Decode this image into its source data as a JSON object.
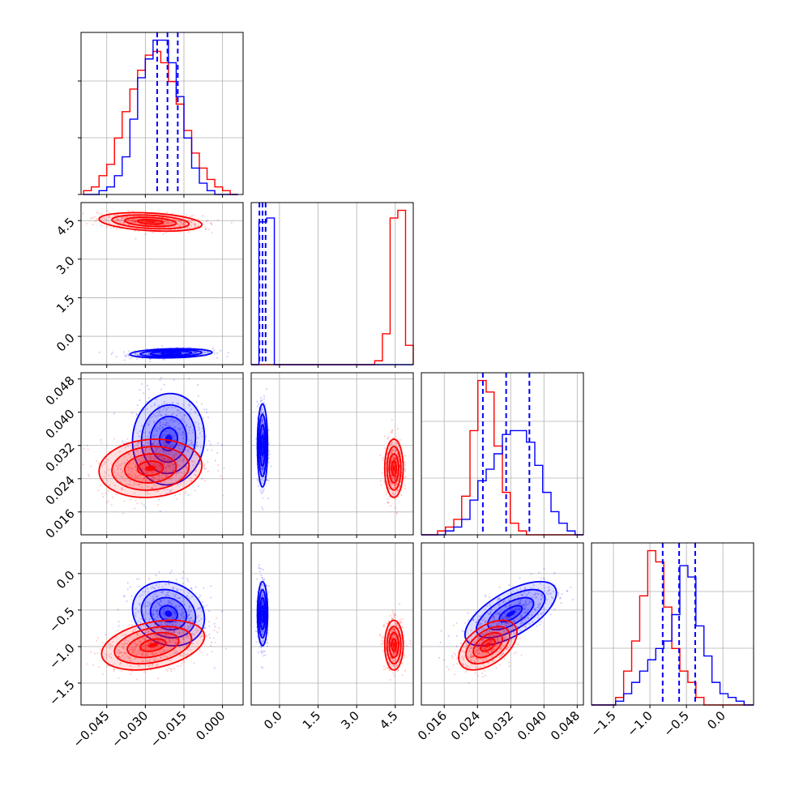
{
  "chart_data": {
    "type": "corner",
    "parameters": 4,
    "series": [
      {
        "color": "#ff0000"
      },
      {
        "color": "#0000ff"
      }
    ],
    "grid": true,
    "axes": [
      {
        "ticks": [
          -0.045,
          -0.03,
          -0.015,
          0.0
        ],
        "tick_labels": [
          "−0.045",
          "−0.030",
          "−0.015",
          "0.000"
        ],
        "range": [
          -0.055,
          0.008
        ]
      },
      {
        "ticks": [
          0.0,
          1.5,
          3.0,
          4.5
        ],
        "tick_labels": [
          "0.0",
          "1.5",
          "3.0",
          "4.5"
        ],
        "range": [
          -1.1,
          5.2
        ]
      },
      {
        "ticks": [
          0.016,
          0.024,
          0.032,
          0.04,
          0.048
        ],
        "tick_labels": [
          "0.016",
          "0.024",
          "0.032",
          "0.040",
          "0.048"
        ],
        "range": [
          0.0105,
          0.0495
        ]
      },
      {
        "ticks": [
          -1.5,
          -1.0,
          -0.5,
          0.0
        ],
        "tick_labels": [
          "−1.5",
          "−1.0",
          "−0.5",
          "0.0"
        ],
        "range": [
          -1.8,
          0.42
        ]
      }
    ],
    "diagonal": [
      {
        "bins": [
          -0.054,
          -0.051,
          -0.048,
          -0.045,
          -0.042,
          -0.039,
          -0.036,
          -0.033,
          -0.03,
          -0.027,
          -0.024,
          -0.021,
          -0.018,
          -0.015,
          -0.012,
          -0.009,
          -0.006,
          -0.003,
          0.0,
          0.003,
          0.006
        ],
        "red": [
          1,
          2,
          5,
          8,
          15,
          22,
          28,
          33,
          37,
          38,
          35,
          30,
          24,
          17,
          11,
          7,
          4,
          2,
          1,
          0
        ],
        "blue": [
          0,
          0,
          1,
          2,
          5,
          10,
          20,
          31,
          36,
          41,
          41,
          35,
          26,
          15,
          7,
          3,
          1,
          0,
          0,
          0
        ],
        "quantiles_blue": [
          -0.0254,
          -0.0214,
          -0.0174
        ]
      },
      {
        "bins": [
          -1.1,
          -0.8,
          -0.5,
          -0.2,
          0.1,
          0.4,
          0.7,
          1.0,
          1.3,
          1.6,
          1.9,
          2.2,
          2.5,
          2.8,
          3.1,
          3.4,
          3.7,
          4.0,
          4.3,
          4.6,
          4.9,
          5.2
        ],
        "red": [
          0,
          0,
          0,
          0,
          0,
          0,
          0,
          0,
          0,
          0,
          0,
          0,
          0,
          0,
          0,
          0,
          1,
          8,
          38,
          40,
          5
        ],
        "blue": [
          0,
          37,
          38,
          0,
          0,
          0,
          0,
          0,
          0,
          0,
          0,
          0,
          0,
          0,
          0,
          0,
          0,
          0,
          0,
          0,
          0
        ],
        "quantiles_blue": [
          -0.78,
          -0.66,
          -0.54
        ]
      },
      {
        "bins": [
          0.0105,
          0.0124,
          0.0144,
          0.0163,
          0.0183,
          0.0202,
          0.0222,
          0.0241,
          0.0261,
          0.028,
          0.03,
          0.0319,
          0.0339,
          0.0358,
          0.0378,
          0.0397,
          0.0417,
          0.0436,
          0.0456,
          0.0475,
          0.0495
        ],
        "red": [
          0,
          0,
          1,
          2,
          4,
          10,
          27,
          40,
          37,
          23,
          11,
          3,
          1,
          0,
          0,
          0,
          0,
          0,
          0,
          0
        ],
        "blue": [
          0,
          0,
          0,
          1,
          2,
          4,
          9,
          14,
          17,
          21,
          26,
          27,
          27,
          24,
          18,
          11,
          6,
          3,
          1,
          0
        ],
        "quantiles_blue": [
          0.0253,
          0.0309,
          0.0365
        ]
      },
      {
        "bins": [
          -1.8,
          -1.69,
          -1.58,
          -1.47,
          -1.36,
          -1.25,
          -1.14,
          -1.03,
          -0.92,
          -0.81,
          -0.7,
          -0.59,
          -0.48,
          -0.37,
          -0.26,
          -0.15,
          -0.04,
          0.07,
          0.18,
          0.29,
          0.42
        ],
        "red": [
          0,
          0,
          0,
          2,
          9,
          17,
          29,
          41,
          38,
          26,
          15,
          9,
          6,
          2,
          0,
          0,
          0,
          0,
          0,
          0
        ],
        "blue": [
          0,
          0,
          0,
          1,
          3,
          6,
          9,
          12,
          15,
          17,
          24,
          37,
          34,
          21,
          13,
          6,
          3,
          2,
          1,
          0
        ],
        "quantiles_blue": [
          -0.825,
          -0.6,
          -0.38
        ]
      }
    ],
    "scatter_regions": [
      {
        "row": 1,
        "col": 0,
        "red": {
          "cx": -0.028,
          "cy": 4.45,
          "sx": 0.01,
          "sy": 0.18,
          "rho": -0.3
        },
        "blue": {
          "cx": -0.02,
          "cy": -0.66,
          "sx": 0.008,
          "sy": 0.09,
          "rho": 0.2
        }
      },
      {
        "row": 2,
        "col": 0,
        "red": {
          "cx": -0.028,
          "cy": 0.0265,
          "sx": 0.01,
          "sy": 0.0035,
          "rho": 0.1
        },
        "blue": {
          "cx": -0.021,
          "cy": 0.0335,
          "sx": 0.007,
          "sy": 0.0055,
          "rho": 0.05
        }
      },
      {
        "row": 2,
        "col": 1,
        "red": {
          "cx": 4.45,
          "cy": 0.0265,
          "sx": 0.18,
          "sy": 0.0035,
          "rho": 0
        },
        "blue": {
          "cx": -0.66,
          "cy": 0.032,
          "sx": 0.1,
          "sy": 0.005,
          "rho": 0
        }
      },
      {
        "row": 3,
        "col": 0,
        "red": {
          "cx": -0.027,
          "cy": -0.98,
          "sx": 0.01,
          "sy": 0.17,
          "rho": 0.35
        },
        "blue": {
          "cx": -0.021,
          "cy": -0.55,
          "sx": 0.007,
          "sy": 0.22,
          "rho": -0.15
        }
      },
      {
        "row": 3,
        "col": 1,
        "red": {
          "cx": 4.45,
          "cy": -0.98,
          "sx": 0.18,
          "sy": 0.17,
          "rho": 0
        },
        "blue": {
          "cx": -0.66,
          "cy": -0.55,
          "sx": 0.1,
          "sy": 0.22,
          "rho": 0
        }
      },
      {
        "row": 3,
        "col": 2,
        "red": {
          "cx": 0.0265,
          "cy": -0.98,
          "sx": 0.0035,
          "sy": 0.17,
          "rho": 0.5
        },
        "blue": {
          "cx": 0.032,
          "cy": -0.55,
          "sx": 0.0055,
          "sy": 0.22,
          "rho": 0.65
        }
      }
    ]
  }
}
